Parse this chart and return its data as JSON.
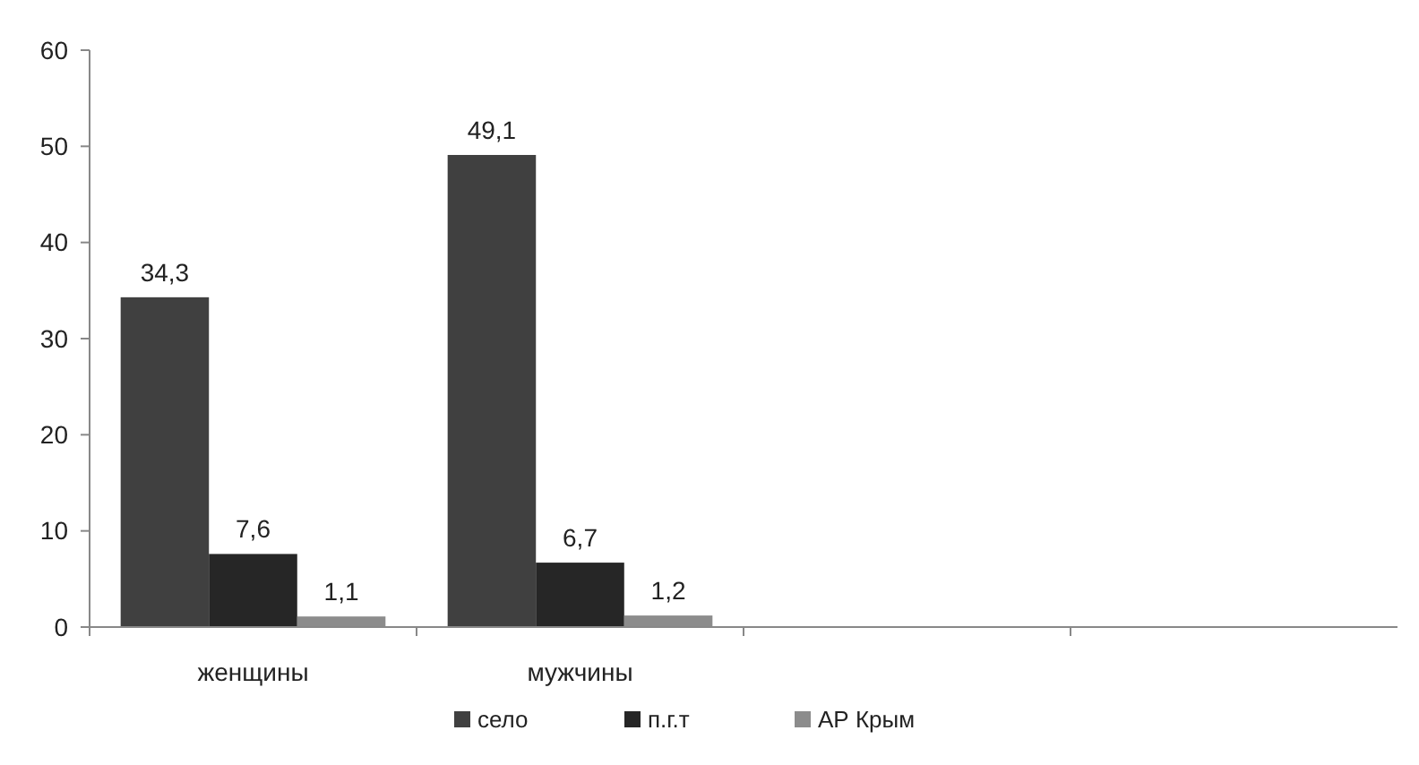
{
  "chart_data": {
    "type": "bar",
    "categories": [
      "женщины",
      "мужчины",
      null,
      null
    ],
    "series": [
      {
        "name": "село",
        "color": "#404040",
        "values": [
          34.3,
          49.1,
          null,
          null
        ],
        "value_labels": [
          "34,3",
          "49,1",
          null,
          null
        ]
      },
      {
        "name": "п.г.т",
        "color": "#262626",
        "values": [
          7.6,
          6.7,
          null,
          null
        ],
        "value_labels": [
          "7,6",
          "6,7",
          null,
          null
        ]
      },
      {
        "name": "АР Крым",
        "color": "#8c8c8c",
        "values": [
          1.1,
          1.2,
          null,
          null
        ],
        "value_labels": [
          "1,1",
          "1,2",
          null,
          null
        ]
      }
    ],
    "ylim": [
      0,
      60
    ],
    "yticks": [
      0,
      10,
      20,
      30,
      40,
      50,
      60
    ],
    "grid": false,
    "legend": "bottom"
  }
}
